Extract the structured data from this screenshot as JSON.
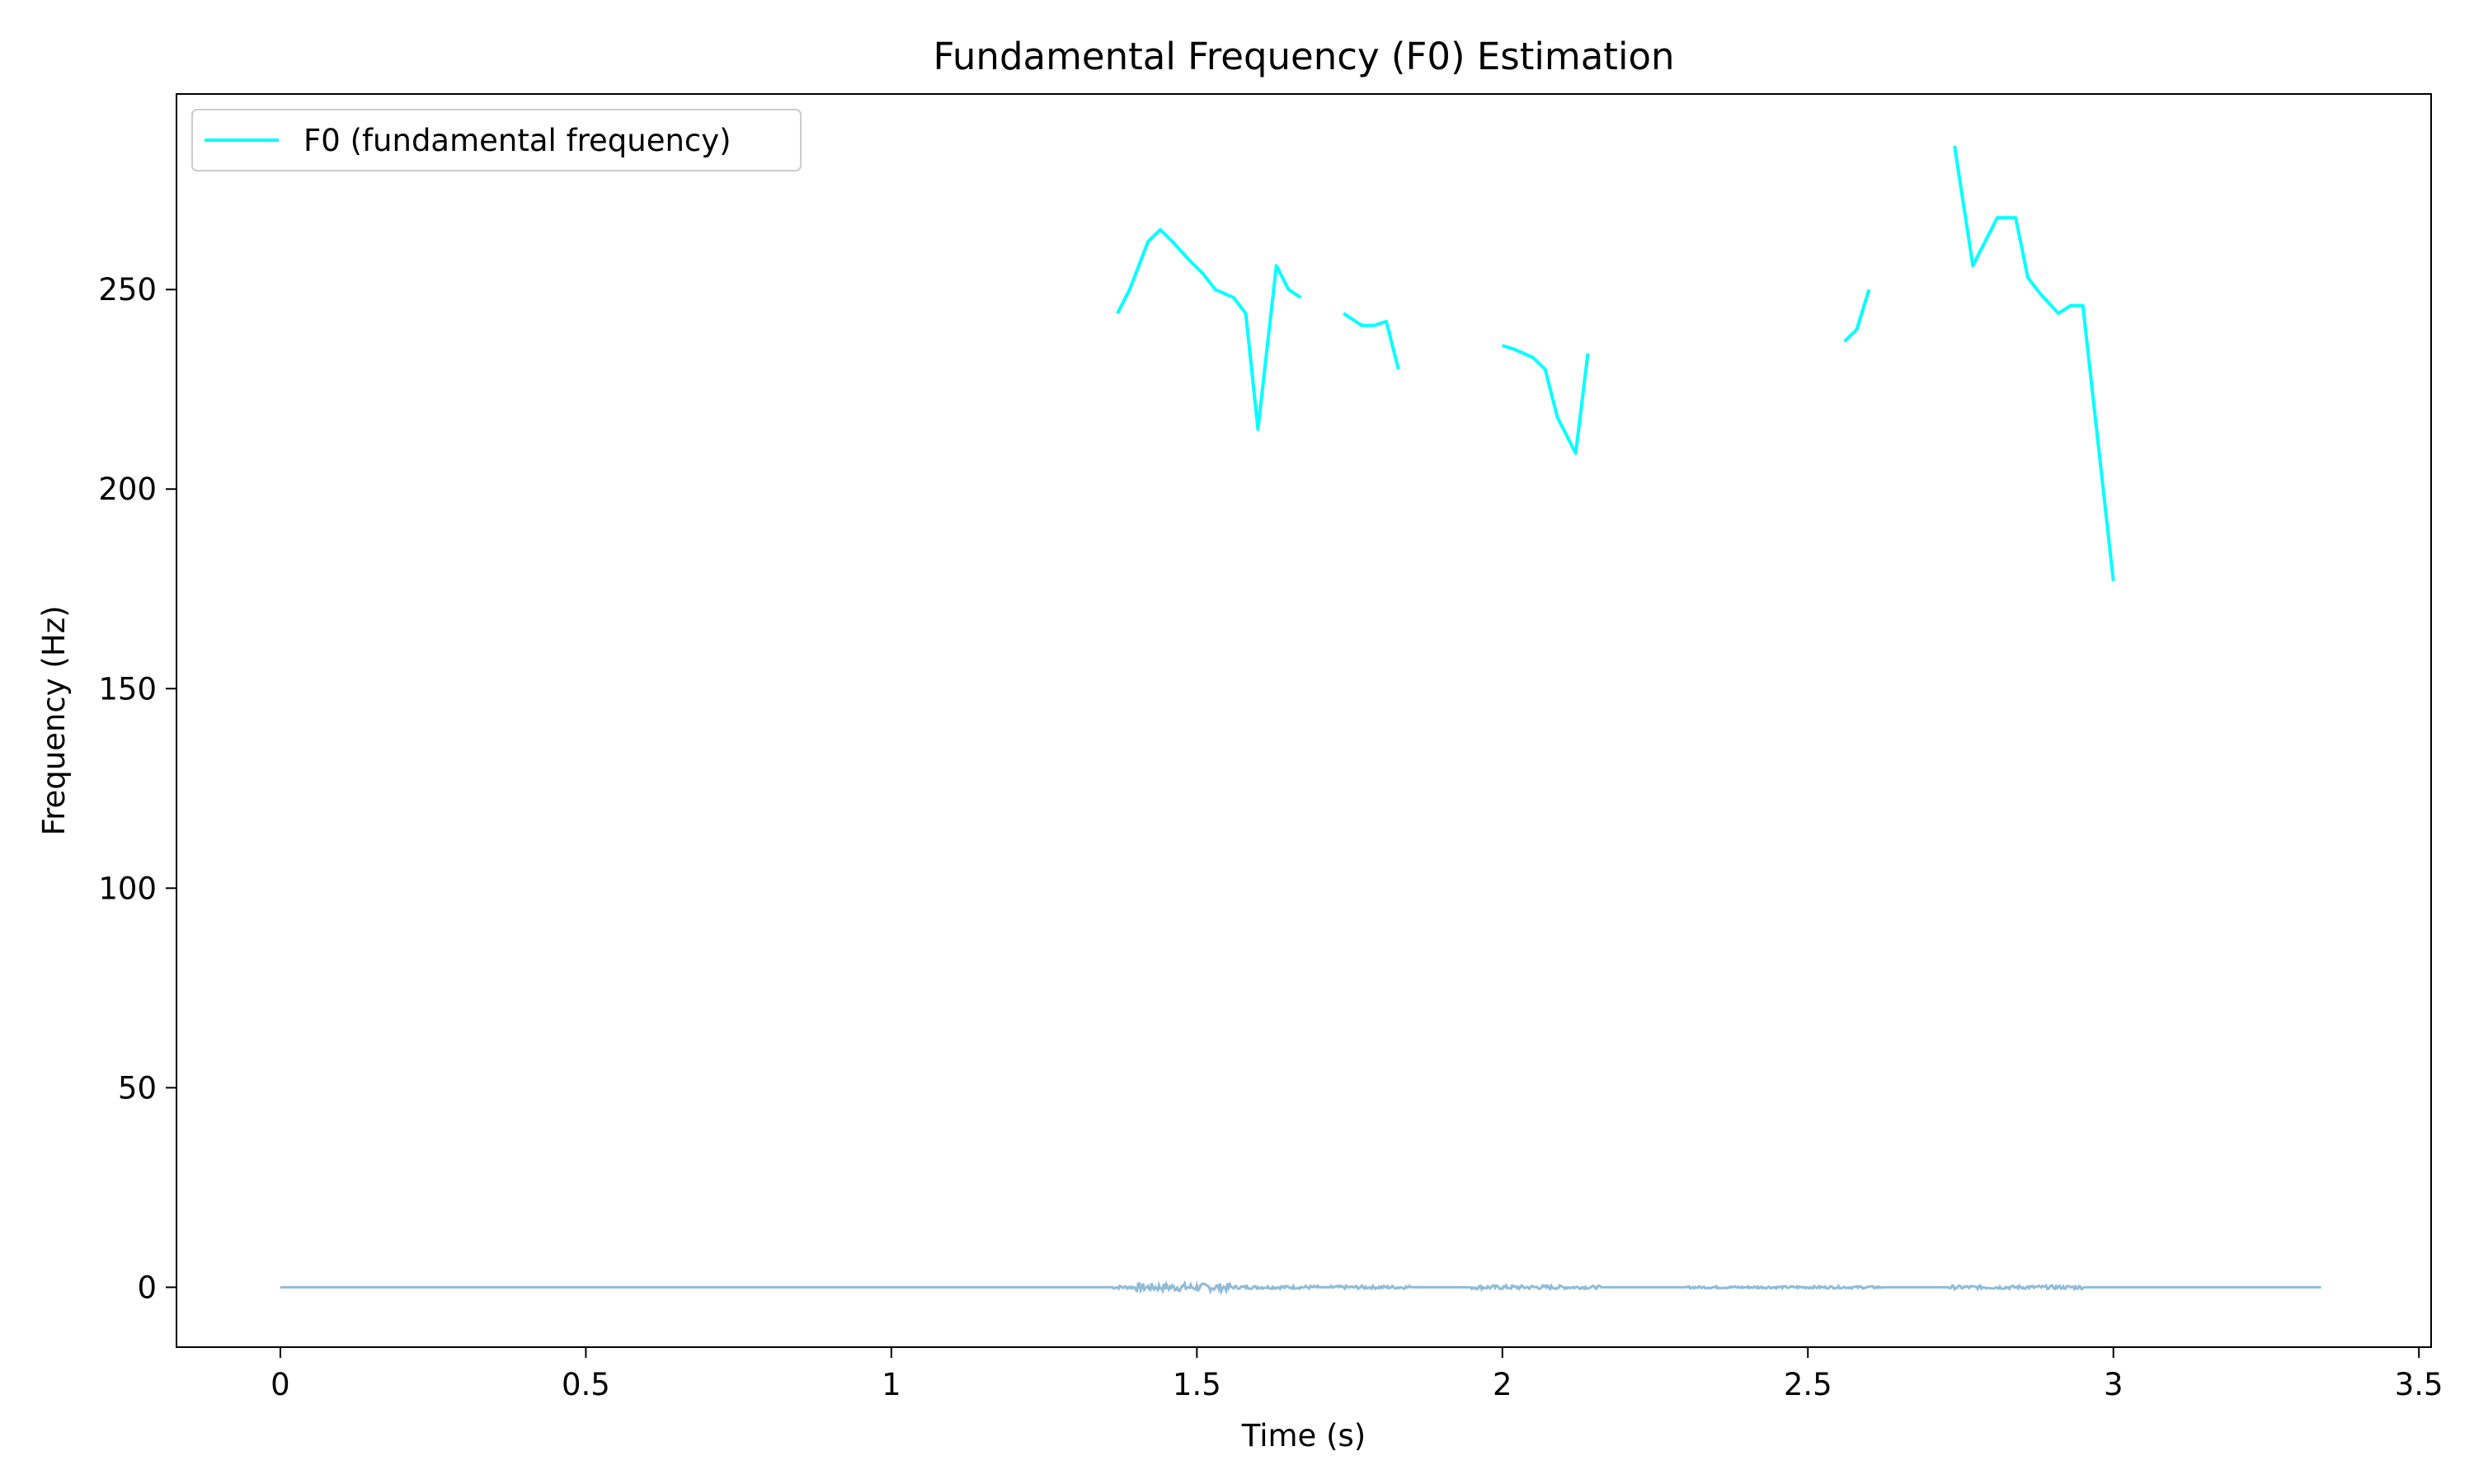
{
  "chart_data": {
    "type": "line",
    "title": "Fundamental Frequency (F0) Estimation",
    "xlabel": "Time (s)",
    "ylabel": "Frequency (Hz)",
    "xlim": [
      -0.17,
      3.52
    ],
    "ylim": [
      -15,
      299
    ],
    "xticks": [
      0,
      0.5,
      1,
      1.5,
      2,
      2.5,
      3,
      3.5
    ],
    "xtick_labels": [
      "0",
      "0.5",
      "1",
      "1.5",
      "2",
      "2.5",
      "3",
      "3.5"
    ],
    "yticks": [
      0,
      50,
      100,
      150,
      200,
      250
    ],
    "ytick_labels": [
      "0",
      "50",
      "100",
      "150",
      "200",
      "250"
    ],
    "grid": false,
    "legend_position": "top-left",
    "series": [
      {
        "name": "F0 (fundamental frequency)",
        "color": "#00ffff",
        "segments": [
          [
            [
              1.37,
              244
            ],
            [
              1.39,
              250
            ],
            [
              1.42,
              262
            ],
            [
              1.44,
              265
            ],
            [
              1.46,
              262
            ],
            [
              1.49,
              257
            ],
            [
              1.51,
              254
            ],
            [
              1.53,
              250
            ],
            [
              1.56,
              248
            ],
            [
              1.58,
              244
            ],
            [
              1.6,
              215
            ],
            [
              1.63,
              256
            ],
            [
              1.65,
              250
            ],
            [
              1.67,
              248
            ]
          ],
          [
            [
              1.74,
              244
            ],
            [
              1.77,
              241
            ],
            [
              1.79,
              241
            ],
            [
              1.81,
              242
            ],
            [
              1.83,
              230
            ]
          ],
          [
            [
              2.0,
              236
            ],
            [
              2.02,
              235
            ],
            [
              2.05,
              233
            ],
            [
              2.07,
              230
            ],
            [
              2.09,
              218
            ],
            [
              2.12,
              209
            ],
            [
              2.14,
              234
            ]
          ],
          [
            [
              2.56,
              237
            ],
            [
              2.58,
              240
            ],
            [
              2.6,
              250
            ]
          ],
          [
            [
              2.74,
              286
            ],
            [
              2.77,
              256
            ],
            [
              2.79,
              262
            ],
            [
              2.81,
              268
            ],
            [
              2.84,
              268
            ],
            [
              2.86,
              253
            ],
            [
              2.88,
              249
            ],
            [
              2.91,
              244
            ],
            [
              2.93,
              246
            ],
            [
              2.95,
              246
            ],
            [
              3.0,
              177
            ]
          ]
        ]
      },
      {
        "name": "",
        "color": "#1f77b4",
        "opacity": 0.5,
        "x_range": [
          0,
          3.34
        ],
        "noise_regions": [
          {
            "start": 1.36,
            "end": 1.4,
            "amp": 0.4
          },
          {
            "start": 1.4,
            "end": 1.56,
            "amp": 1.0
          },
          {
            "start": 1.56,
            "end": 1.7,
            "amp": 0.4
          },
          {
            "start": 1.72,
            "end": 1.85,
            "amp": 0.4
          },
          {
            "start": 1.95,
            "end": 2.1,
            "amp": 0.5
          },
          {
            "start": 2.1,
            "end": 2.16,
            "amp": 0.4
          },
          {
            "start": 2.3,
            "end": 2.62,
            "amp": 0.3
          },
          {
            "start": 2.73,
            "end": 2.95,
            "amp": 0.45
          }
        ]
      }
    ]
  }
}
